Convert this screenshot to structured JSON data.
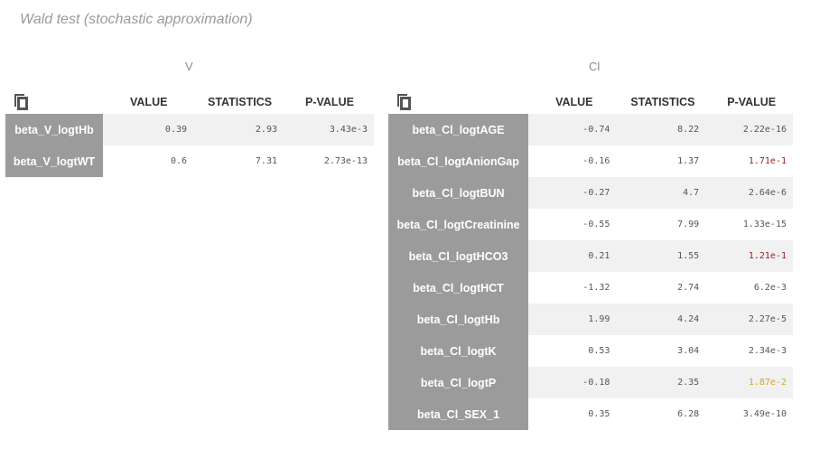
{
  "title": "Wald test (stochastic approximation)",
  "columns": {
    "value": "VALUE",
    "statistics": "STATISTICS",
    "pvalue": "P-VALUE"
  },
  "icons": {
    "copy": "copy-icon"
  },
  "colors": {
    "rowname_bg": "#9b9b9b",
    "pvalue_red": "#9a1c1c",
    "pvalue_yellow": "#d4a22a",
    "stripe": "#f1f1f1"
  },
  "panels": [
    {
      "caption": "V",
      "rows": [
        {
          "name": "beta_V_logtHb",
          "value": "0.39",
          "statistics": "2.93",
          "pvalue": "3.43e-3",
          "level": "none"
        },
        {
          "name": "beta_V_logtWT",
          "value": "0.6",
          "statistics": "7.31",
          "pvalue": "2.73e-13",
          "level": "none"
        }
      ]
    },
    {
      "caption": "Cl",
      "rows": [
        {
          "name": "beta_Cl_logtAGE",
          "value": "-0.74",
          "statistics": "8.22",
          "pvalue": "2.22e-16",
          "level": "none"
        },
        {
          "name": "beta_Cl_logtAnionGap",
          "value": "-0.16",
          "statistics": "1.37",
          "pvalue": "1.71e-1",
          "level": "red"
        },
        {
          "name": "beta_Cl_logtBUN",
          "value": "-0.27",
          "statistics": "4.7",
          "pvalue": "2.64e-6",
          "level": "none"
        },
        {
          "name": "beta_Cl_logtCreatinine",
          "value": "-0.55",
          "statistics": "7.99",
          "pvalue": "1.33e-15",
          "level": "none"
        },
        {
          "name": "beta_Cl_logtHCO3",
          "value": "0.21",
          "statistics": "1.55",
          "pvalue": "1.21e-1",
          "level": "red"
        },
        {
          "name": "beta_Cl_logtHCT",
          "value": "-1.32",
          "statistics": "2.74",
          "pvalue": "6.2e-3",
          "level": "none"
        },
        {
          "name": "beta_Cl_logtHb",
          "value": "1.99",
          "statistics": "4.24",
          "pvalue": "2.27e-5",
          "level": "none"
        },
        {
          "name": "beta_Cl_logtK",
          "value": "0.53",
          "statistics": "3.04",
          "pvalue": "2.34e-3",
          "level": "none"
        },
        {
          "name": "beta_Cl_logtP",
          "value": "-0.18",
          "statistics": "2.35",
          "pvalue": "1.87e-2",
          "level": "yellow"
        },
        {
          "name": "beta_Cl_SEX_1",
          "value": "0.35",
          "statistics": "6.28",
          "pvalue": "3.49e-10",
          "level": "none"
        }
      ]
    }
  ]
}
